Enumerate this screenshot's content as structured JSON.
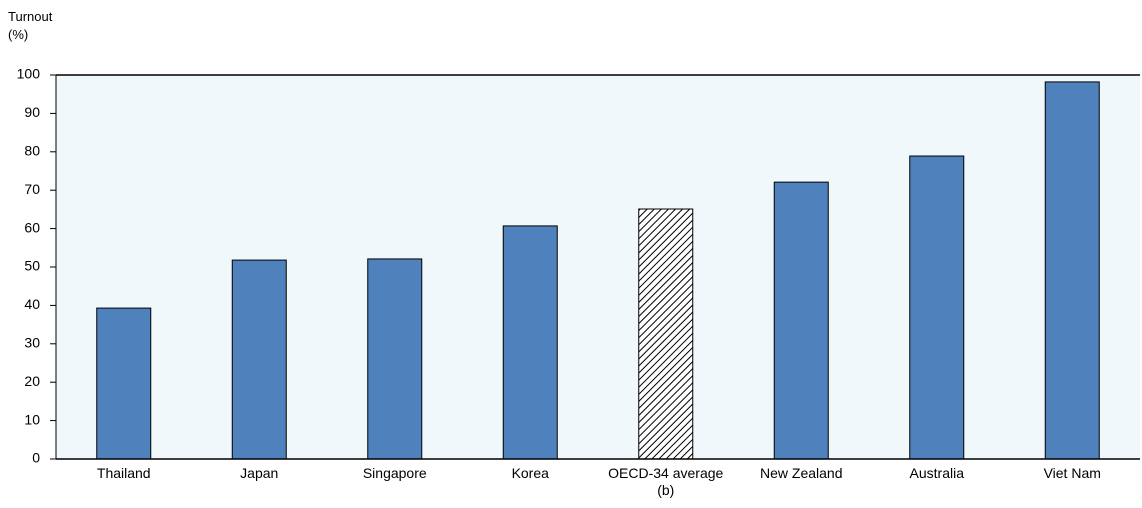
{
  "chart_data": {
    "type": "bar",
    "y_label": "Turnout (%)",
    "categories": [
      "Thailand",
      "Japan",
      "Singapore",
      "Korea",
      "OECD-34 average (b)",
      "New Zealand",
      "Australia",
      "Viet Nam"
    ],
    "values": [
      39.3,
      51.8,
      52.1,
      60.7,
      65.1,
      72.1,
      78.9,
      98.2
    ],
    "bar_styles": [
      "solid",
      "solid",
      "solid",
      "solid",
      "hatched",
      "solid",
      "solid",
      "solid"
    ],
    "color": "#4f81bd",
    "plot_background": "#f0f8fb",
    "ylim": [
      0,
      100
    ],
    "yticks": [
      0,
      10,
      20,
      30,
      40,
      50,
      60,
      70,
      80,
      90,
      100
    ]
  }
}
